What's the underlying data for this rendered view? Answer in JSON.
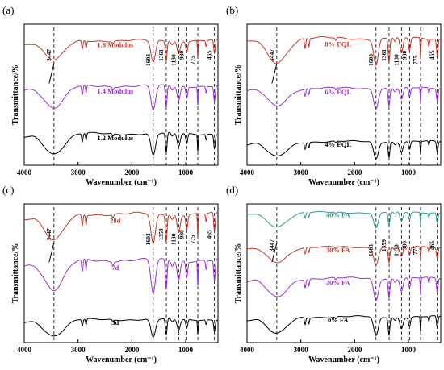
{
  "figure": {
    "panels": [
      {
        "letter": "(a)"
      },
      {
        "letter": "(b)"
      },
      {
        "letter": "(c)"
      },
      {
        "letter": "(d)"
      }
    ]
  },
  "chart_data": [
    {
      "type": "line",
      "panel": "(a)",
      "xlabel": "Wavenumber (cm⁻¹)",
      "ylabel": "Transmittance/%",
      "xlim": [
        4000,
        400
      ],
      "x_reversed": true,
      "x_ticks": [
        4000,
        3000,
        2000,
        1000
      ],
      "reference_lines": [
        3447,
        1603,
        1361,
        1130,
        980,
        775,
        465
      ],
      "peak_labels": [
        "3447",
        "1603",
        "1361",
        "1130",
        "980",
        "775",
        "465"
      ],
      "series": [
        {
          "name": "1.6 Modulus",
          "color": "#c0392b"
        },
        {
          "name": "1.4 Modulus",
          "color": "#9b30d9"
        },
        {
          "name": "1.2 Modulus",
          "color": "#000000"
        }
      ]
    },
    {
      "type": "line",
      "panel": "(b)",
      "xlabel": "Wavenumber (cm⁻¹)",
      "ylabel": "Transmittance/%",
      "xlim": [
        4000,
        400
      ],
      "x_reversed": true,
      "x_ticks": [
        4000,
        3000,
        2000,
        1000
      ],
      "reference_lines": [
        3447,
        1603,
        1361,
        1130,
        980,
        775,
        465
      ],
      "peak_labels": [
        "3447",
        "1603",
        "1361",
        "1130",
        "980",
        "775",
        "465"
      ],
      "series": [
        {
          "name": "8% EQL",
          "color": "#c0392b"
        },
        {
          "name": "6% EQL",
          "color": "#9b30d9"
        },
        {
          "name": "4% EQL",
          "color": "#000000"
        }
      ]
    },
    {
      "type": "line",
      "panel": "(c)",
      "xlabel": "Wavenumber (cm⁻¹)",
      "ylabel": "Transmittance/%",
      "xlim": [
        4000,
        400
      ],
      "x_reversed": true,
      "x_ticks": [
        4000,
        3000,
        2000,
        1000
      ],
      "reference_lines": [
        3447,
        1603,
        1359,
        1130,
        980,
        775,
        465
      ],
      "peak_labels": [
        "3447",
        "1603",
        "1359",
        "1130",
        "980",
        "775",
        "465"
      ],
      "series": [
        {
          "name": "28d",
          "color": "#c0392b"
        },
        {
          "name": "7d",
          "color": "#9b30d9"
        },
        {
          "name": "3d",
          "color": "#000000"
        }
      ]
    },
    {
      "type": "line",
      "panel": "(d)",
      "xlabel": "Wavenumber (cm⁻¹)",
      "ylabel": "Transmittance/%",
      "xlim": [
        4000,
        400
      ],
      "x_reversed": true,
      "x_ticks": [
        4000,
        3000,
        2000,
        1000
      ],
      "reference_lines": [
        3447,
        1603,
        1359,
        1130,
        980,
        775,
        465
      ],
      "peak_labels": [
        "3447",
        "1603",
        "1359",
        "1130",
        "980",
        "775",
        "465"
      ],
      "series": [
        {
          "name": "40% FA",
          "color": "#2aa198"
        },
        {
          "name": "30% FA",
          "color": "#c0392b"
        },
        {
          "name": "20% FA",
          "color": "#9b30d9"
        },
        {
          "name": "0% FA",
          "color": "#000000"
        }
      ]
    }
  ]
}
